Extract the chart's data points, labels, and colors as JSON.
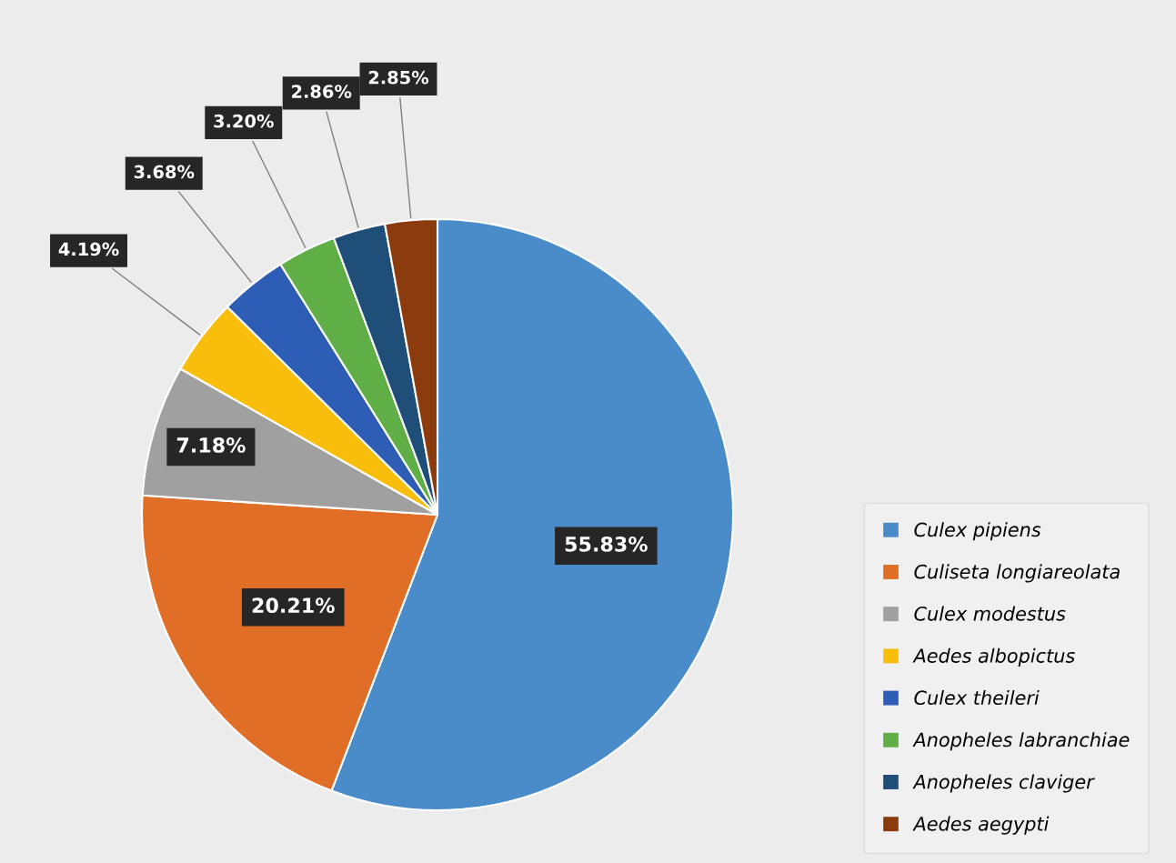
{
  "chart_data": {
    "type": "pie",
    "categories": [
      "Culex pipiens",
      "Culiseta longiareolata",
      "Culex modestus",
      "Aedes albopictus",
      "Culex theileri",
      "Anopheles labranchiae",
      "Anopheles claviger",
      "Aedes aegypti"
    ],
    "values": [
      55.83,
      20.21,
      7.18,
      4.19,
      3.68,
      3.2,
      2.86,
      2.85
    ],
    "value_labels": [
      "55.83%",
      "20.21%",
      "7.18%",
      "4.19%",
      "3.68%",
      "3.20%",
      "2.86%",
      "2.85%"
    ],
    "colors": [
      "#4a8cc9",
      "#e06e27",
      "#a0a0a0",
      "#f9bd0c",
      "#2e5db5",
      "#5fae46",
      "#1f4e79",
      "#8c3b0f"
    ],
    "legend": "bottom right"
  }
}
